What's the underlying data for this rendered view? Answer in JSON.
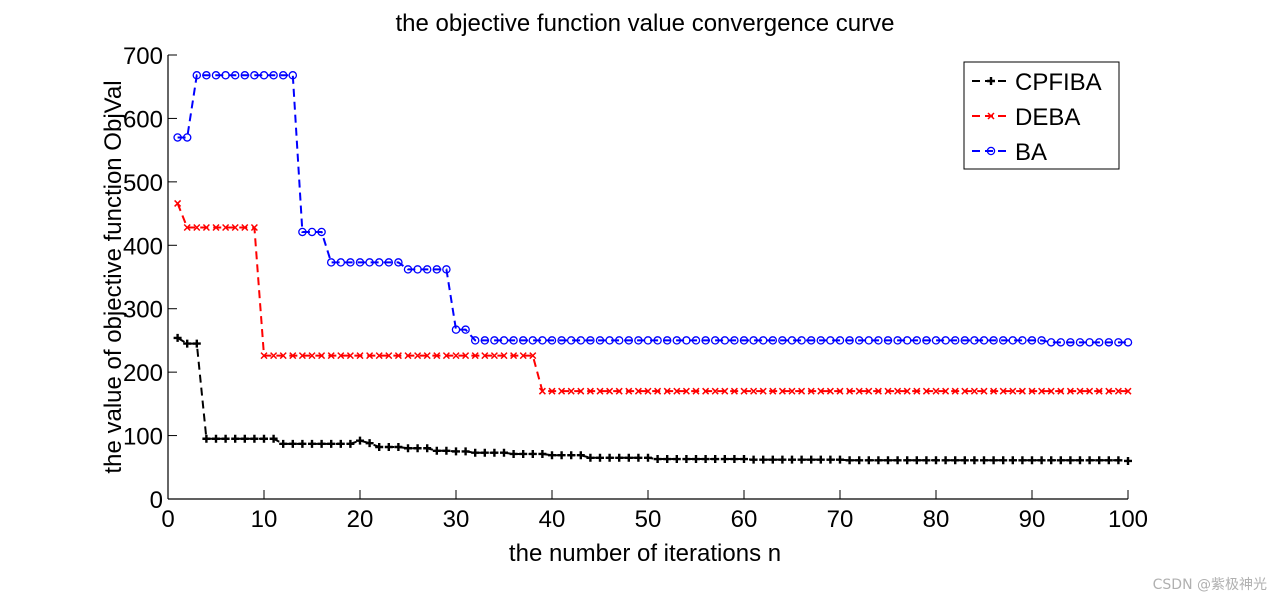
{
  "chart_data": {
    "type": "line",
    "title": "the objective function value convergence curve",
    "xlabel": "the number of iterations n",
    "ylabel": "the value of objective function ObjVal",
    "xlim": [
      0,
      100
    ],
    "ylim": [
      0,
      700
    ],
    "xticks": [
      0,
      10,
      20,
      30,
      40,
      50,
      60,
      70,
      80,
      90,
      100
    ],
    "yticks": [
      0,
      100,
      200,
      300,
      400,
      500,
      600,
      700
    ],
    "grid": false,
    "legend": "top-right",
    "series": [
      {
        "name": "CPFIBA",
        "color": "#000000",
        "marker": "plus",
        "values": [
          254,
          245,
          245,
          95,
          95,
          95,
          95,
          95,
          95,
          95,
          95,
          87,
          87,
          87,
          87,
          87,
          87,
          87,
          87,
          92,
          88,
          82,
          82,
          82,
          80,
          80,
          80,
          76,
          76,
          75,
          75,
          73,
          73,
          73,
          73,
          71,
          71,
          71,
          71,
          69,
          69,
          69,
          69,
          65,
          65,
          65,
          65,
          65,
          65,
          65,
          63,
          63,
          63,
          63,
          63,
          63,
          63,
          63,
          63,
          63,
          62,
          62,
          62,
          62,
          62,
          62,
          62,
          62,
          62,
          62,
          61,
          61,
          61,
          61,
          61,
          61,
          61,
          61,
          61,
          61,
          61,
          61,
          61,
          61,
          61,
          61,
          61,
          61,
          61,
          61,
          61,
          61,
          61,
          61,
          61,
          61,
          61,
          61,
          61,
          60
        ]
      },
      {
        "name": "DEBA",
        "color": "#ff0000",
        "marker": "x",
        "values": [
          466,
          428,
          428,
          428,
          428,
          428,
          428,
          428,
          428,
          226,
          226,
          226,
          226,
          226,
          226,
          226,
          226,
          226,
          226,
          226,
          226,
          226,
          226,
          226,
          226,
          226,
          226,
          226,
          226,
          226,
          226,
          226,
          226,
          226,
          226,
          226,
          226,
          226,
          170,
          170,
          170,
          170,
          170,
          170,
          170,
          170,
          170,
          170,
          170,
          170,
          170,
          170,
          170,
          170,
          170,
          170,
          170,
          170,
          170,
          170,
          170,
          170,
          170,
          170,
          170,
          170,
          170,
          170,
          170,
          170,
          170,
          170,
          170,
          170,
          170,
          170,
          170,
          170,
          170,
          170,
          170,
          170,
          170,
          170,
          170,
          170,
          170,
          170,
          170,
          170,
          170,
          170,
          170,
          170,
          170,
          170,
          170,
          170,
          170,
          170
        ]
      },
      {
        "name": "BA",
        "color": "#0000ff",
        "marker": "circle",
        "values": [
          570,
          570,
          668,
          668,
          668,
          668,
          668,
          668,
          668,
          668,
          668,
          668,
          668,
          421,
          421,
          421,
          373,
          373,
          373,
          373,
          373,
          373,
          373,
          373,
          362,
          362,
          362,
          362,
          362,
          267,
          267,
          250,
          250,
          250,
          250,
          250,
          250,
          250,
          250,
          250,
          250,
          250,
          250,
          250,
          250,
          250,
          250,
          250,
          250,
          250,
          250,
          250,
          250,
          250,
          250,
          250,
          250,
          250,
          250,
          250,
          250,
          250,
          250,
          250,
          250,
          250,
          250,
          250,
          250,
          250,
          250,
          250,
          250,
          250,
          250,
          250,
          250,
          250,
          250,
          250,
          250,
          250,
          250,
          250,
          250,
          250,
          250,
          250,
          250,
          250,
          250,
          247,
          247,
          247,
          247,
          247,
          247,
          247,
          247,
          247
        ]
      }
    ]
  },
  "watermark": "CSDN @紫极神光"
}
